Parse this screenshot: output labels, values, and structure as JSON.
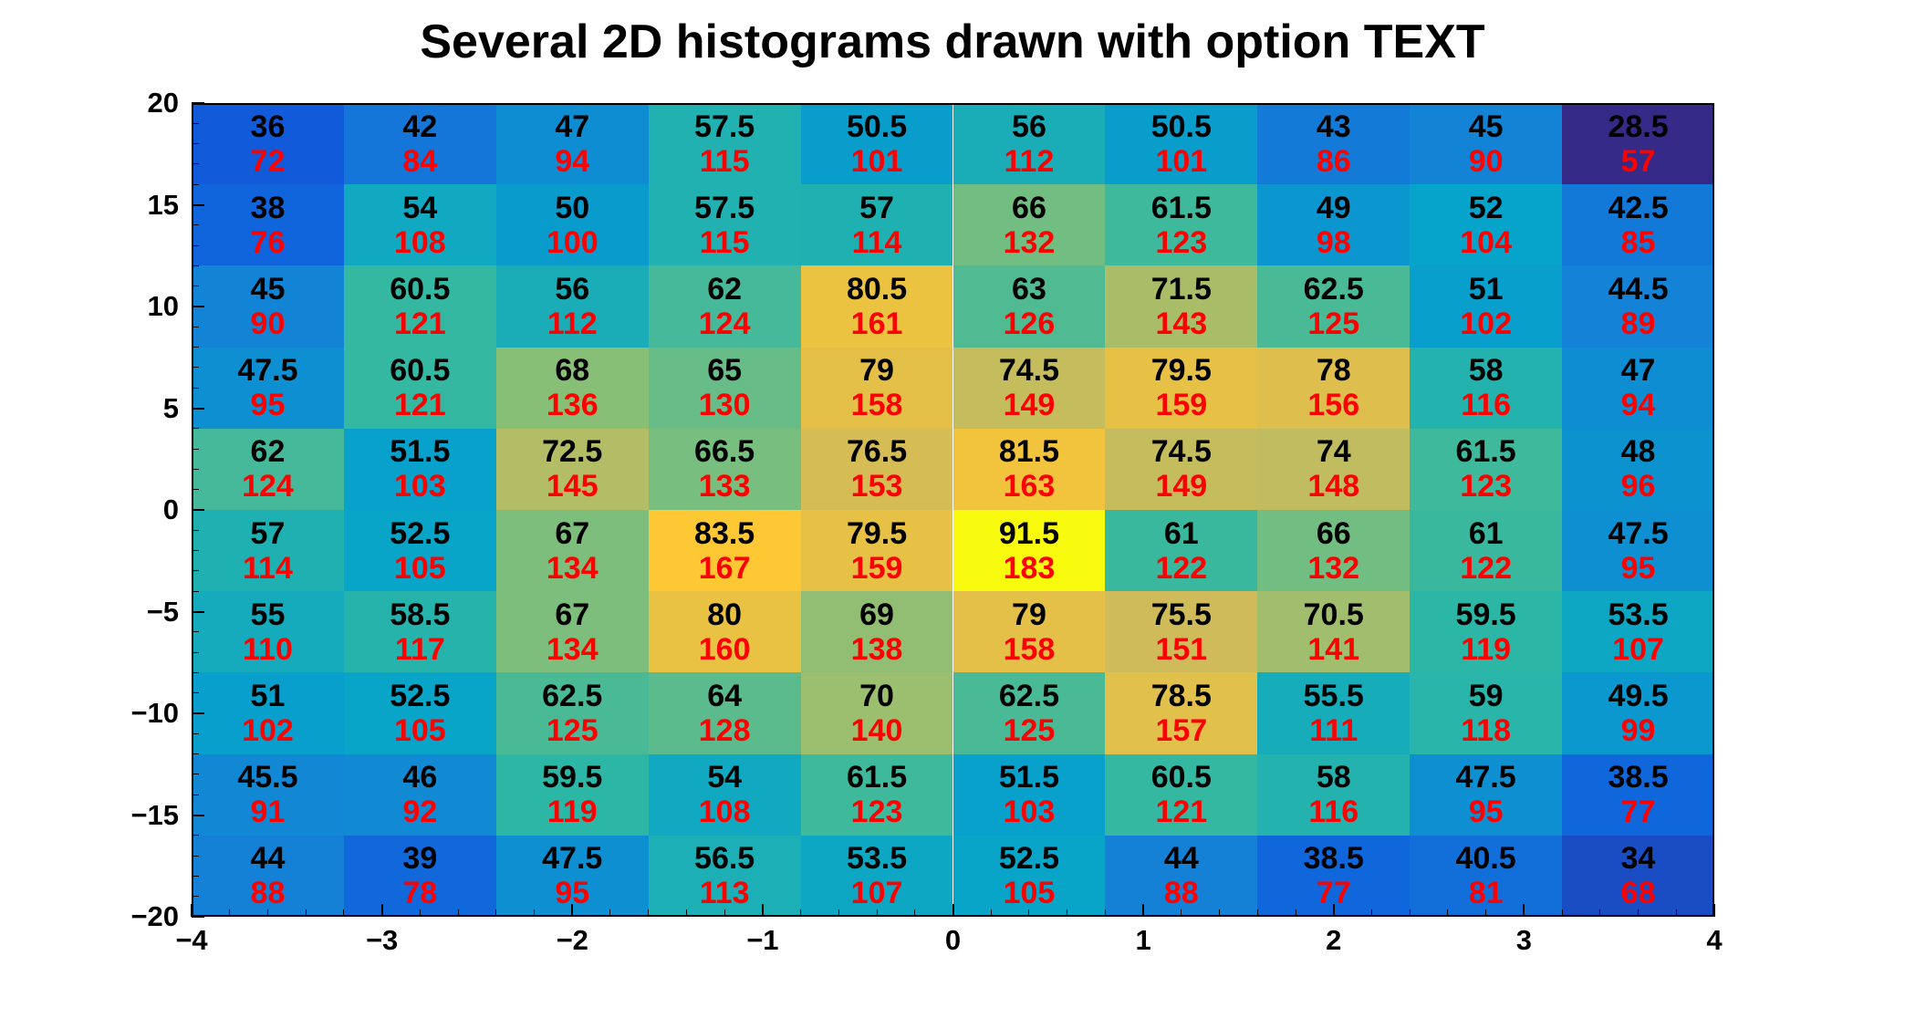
{
  "page": {
    "background": "#ffffff"
  },
  "chart_data": {
    "type": "heatmap",
    "title": "Several 2D histograms drawn with option TEXT",
    "xlabel": "",
    "ylabel": "",
    "xlim": [
      -4,
      4
    ],
    "ylim": [
      -20,
      20
    ],
    "x_ticks": [
      -4,
      -3,
      -2,
      -1,
      0,
      1,
      2,
      3,
      4
    ],
    "y_ticks": [
      20,
      15,
      10,
      5,
      0,
      -5,
      -10,
      -15,
      -20
    ],
    "n_cols": 10,
    "n_rows": 10,
    "rows_order": "top-to-bottom: first row covers y in [16,20], last row covers y in [-20,-16]",
    "zmin": 28.5,
    "zmax": 91.5,
    "palette": [
      "#352A87",
      "#0F5CDD",
      "#1481D6",
      "#06A4CA",
      "#2EB7A4",
      "#87BF77",
      "#D1BB59",
      "#FEC832",
      "#F9FB0E"
    ],
    "grid": false,
    "legend": "none",
    "series": [
      {
        "name": "histogram-1-black-text",
        "text_color": "#000000",
        "rows": [
          [
            36,
            42,
            47,
            57.5,
            50.5,
            56,
            50.5,
            43,
            45,
            28.5
          ],
          [
            38,
            54,
            50,
            57.5,
            57,
            66,
            61.5,
            49,
            52,
            42.5
          ],
          [
            45,
            60.5,
            56,
            62,
            80.5,
            63,
            71.5,
            62.5,
            51,
            44.5
          ],
          [
            47.5,
            60.5,
            68,
            65,
            79,
            74.5,
            79.5,
            78,
            58,
            47
          ],
          [
            62,
            51.5,
            72.5,
            66.5,
            76.5,
            81.5,
            74.5,
            74,
            61.5,
            48
          ],
          [
            57,
            52.5,
            67,
            83.5,
            79.5,
            91.5,
            61,
            66,
            61,
            47.5
          ],
          [
            55,
            58.5,
            67,
            80,
            69,
            79,
            75.5,
            70.5,
            59.5,
            53.5
          ],
          [
            51,
            52.5,
            62.5,
            64,
            70,
            62.5,
            78.5,
            55.5,
            59,
            49.5
          ],
          [
            45.5,
            46,
            59.5,
            54,
            61.5,
            51.5,
            60.5,
            58,
            47.5,
            38.5
          ],
          [
            44,
            39,
            47.5,
            56.5,
            53.5,
            52.5,
            44,
            38.5,
            40.5,
            34
          ]
        ]
      },
      {
        "name": "histogram-2-red-text",
        "text_color": "#ff0000",
        "rows": [
          [
            72,
            84,
            94,
            115,
            101,
            112,
            101,
            86,
            90,
            57
          ],
          [
            76,
            108,
            100,
            115,
            114,
            132,
            123,
            98,
            104,
            85
          ],
          [
            90,
            121,
            112,
            124,
            161,
            126,
            143,
            125,
            102,
            89
          ],
          [
            95,
            121,
            136,
            130,
            158,
            149,
            159,
            156,
            116,
            94
          ],
          [
            124,
            103,
            145,
            133,
            153,
            163,
            149,
            148,
            123,
            96
          ],
          [
            114,
            105,
            134,
            167,
            159,
            183,
            122,
            132,
            122,
            95
          ],
          [
            110,
            117,
            134,
            160,
            138,
            158,
            151,
            141,
            119,
            107
          ],
          [
            102,
            105,
            125,
            128,
            140,
            125,
            157,
            111,
            118,
            99
          ],
          [
            91,
            92,
            119,
            108,
            123,
            103,
            121,
            116,
            95,
            77
          ],
          [
            88,
            78,
            95,
            113,
            107,
            105,
            88,
            77,
            81,
            68
          ]
        ]
      }
    ],
    "axis_color": "#000000"
  }
}
